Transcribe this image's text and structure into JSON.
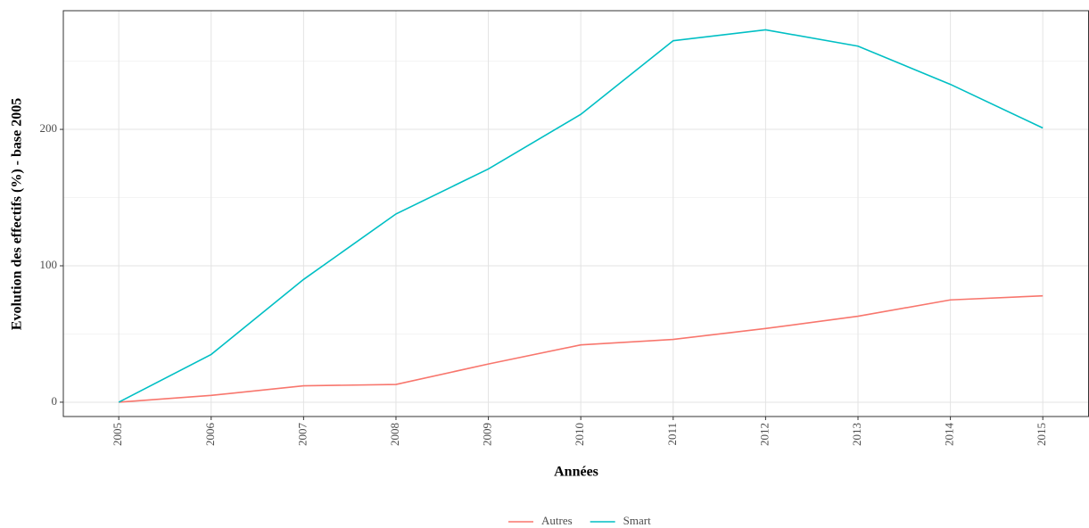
{
  "chart_data": {
    "type": "line",
    "x_label": "Années",
    "y_label": "Evolution des effectifs (%) - base 2005",
    "x": [
      2005,
      2006,
      2007,
      2008,
      2009,
      2010,
      2011,
      2012,
      2013,
      2014,
      2015
    ],
    "series": [
      {
        "name": "Autres",
        "color": "#F8766D",
        "values": [
          0,
          5,
          12,
          13,
          28,
          42,
          46,
          54,
          63,
          75,
          78
        ]
      },
      {
        "name": "Smart",
        "color": "#00BFC4",
        "values": [
          0,
          35,
          90,
          138,
          171,
          211,
          265,
          273,
          261,
          233,
          201
        ]
      }
    ],
    "xlim": [
      2004.4,
      2015.5
    ],
    "xticks": [
      2005,
      2006,
      2007,
      2008,
      2009,
      2010,
      2011,
      2012,
      2013,
      2014,
      2015
    ],
    "ylim": [
      -10.5,
      287
    ],
    "yticks": [
      0,
      100,
      200
    ],
    "y_minor_grid": [
      50,
      150,
      250
    ],
    "grid": true,
    "legend_position": "bottom"
  }
}
